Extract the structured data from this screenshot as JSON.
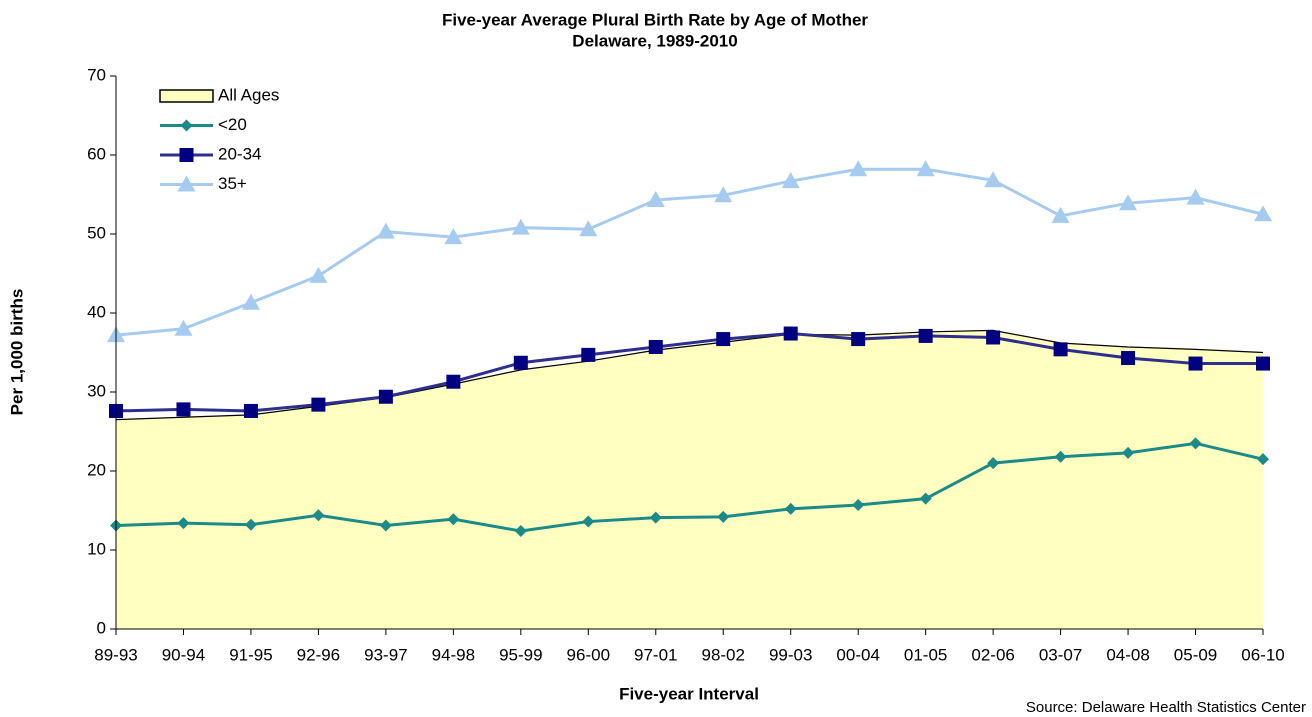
{
  "chart_data": {
    "type": "line",
    "title": "Five-year Average Plural Birth Rate by Age of Mother",
    "subtitle": "Delaware, 1989-2010",
    "x_label": "Five-year Interval",
    "y_label": "Per 1,000 births",
    "source": "Source: Delaware Health Statistics Center",
    "categories": [
      "89-93",
      "90-94",
      "91-95",
      "92-96",
      "93-97",
      "94-98",
      "95-99",
      "96-00",
      "97-01",
      "98-02",
      "99-03",
      "00-04",
      "01-05",
      "02-06",
      "03-07",
      "04-08",
      "05-09",
      "06-10"
    ],
    "ylim": [
      0,
      70
    ],
    "yticks": [
      0,
      10,
      20,
      30,
      40,
      50,
      60,
      70
    ],
    "grid": false,
    "legend": "top-left",
    "series": [
      {
        "name": "All Ages",
        "style": "area",
        "color": "#ffffc0",
        "line_color": "#000000",
        "values": [
          26.5,
          26.8,
          27.1,
          28.2,
          29.3,
          31.0,
          32.8,
          33.9,
          35.3,
          36.3,
          37.3,
          37.2,
          37.6,
          37.8,
          36.2,
          35.7,
          35.4,
          35.0
        ]
      },
      {
        "name": "<20",
        "style": "line",
        "marker": "diamond",
        "color": "#1b8a88",
        "values": [
          13.1,
          13.4,
          13.2,
          14.4,
          13.1,
          13.9,
          12.4,
          13.6,
          14.1,
          14.2,
          15.2,
          15.7,
          16.5,
          21.0,
          21.8,
          22.3,
          23.5,
          21.5
        ]
      },
      {
        "name": "20-34",
        "style": "line",
        "marker": "square",
        "color": "#2e2e8f",
        "marker_color": "#000080",
        "values": [
          27.6,
          27.8,
          27.6,
          28.4,
          29.4,
          31.3,
          33.7,
          34.7,
          35.7,
          36.7,
          37.4,
          36.7,
          37.1,
          36.9,
          35.4,
          34.3,
          33.6,
          33.6
        ]
      },
      {
        "name": "35+",
        "style": "line",
        "marker": "triangle",
        "color": "#a6cbf0",
        "values": [
          37.2,
          38.0,
          41.3,
          44.7,
          50.3,
          49.6,
          50.8,
          50.6,
          54.3,
          54.9,
          56.7,
          58.2,
          58.2,
          56.8,
          52.3,
          53.9,
          54.6,
          52.5
        ]
      }
    ]
  }
}
